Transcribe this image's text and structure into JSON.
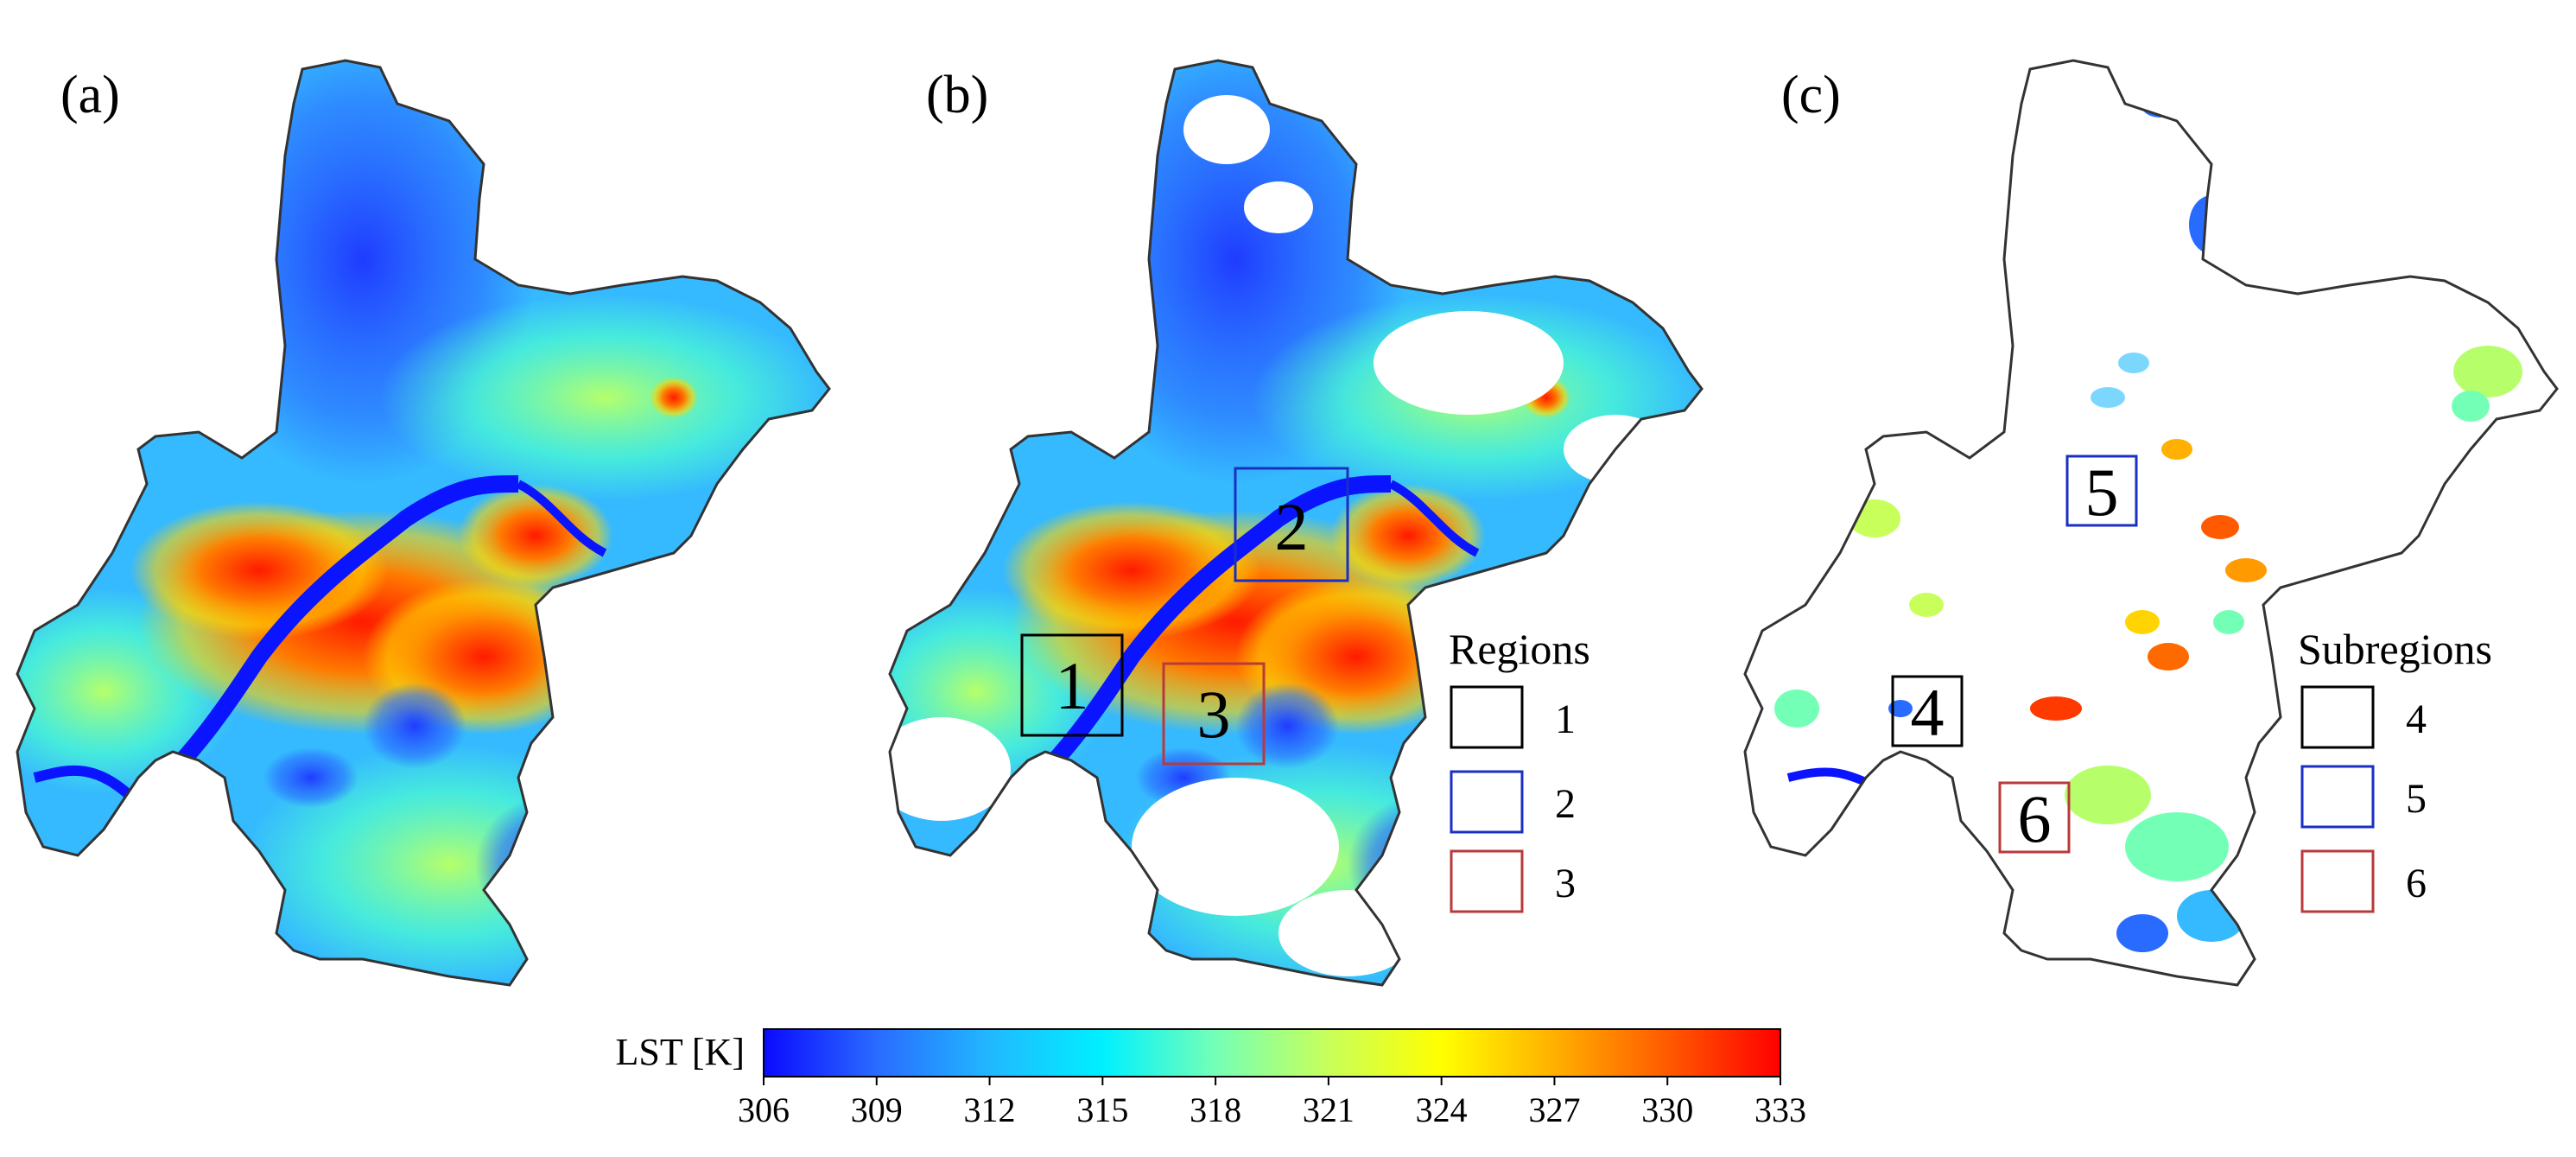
{
  "panels": [
    {
      "label": "(a)"
    },
    {
      "label": "(b)"
    },
    {
      "label": "(c)"
    }
  ],
  "legend_b": {
    "title": "Regions",
    "items": [
      {
        "label": "1",
        "color": "#000000"
      },
      {
        "label": "2",
        "color": "#1a2fc4"
      },
      {
        "label": "3",
        "color": "#b83a3a"
      }
    ]
  },
  "legend_c": {
    "title": "Subregions",
    "items": [
      {
        "label": "4",
        "color": "#000000"
      },
      {
        "label": "5",
        "color": "#1a2fc4"
      },
      {
        "label": "6",
        "color": "#b83a3a"
      }
    ]
  },
  "boxes_b": [
    {
      "label": "1",
      "color": "#000000"
    },
    {
      "label": "2",
      "color": "#1a2fc4"
    },
    {
      "label": "3",
      "color": "#b83a3a"
    }
  ],
  "boxes_c": [
    {
      "label": "4",
      "color": "#000000"
    },
    {
      "label": "5",
      "color": "#1a2fc4"
    },
    {
      "label": "6",
      "color": "#b83a3a"
    }
  ],
  "colorbar": {
    "title": "LST [K]",
    "min": 306,
    "max": 333,
    "ticks": [
      "306",
      "309",
      "312",
      "315",
      "318",
      "321",
      "324",
      "327",
      "330",
      "333"
    ],
    "colors": [
      "#0a0aff",
      "#2a6bff",
      "#21b8ff",
      "#00f0ff",
      "#74ffb6",
      "#c8ff5a",
      "#ffff00",
      "#ffb000",
      "#ff5a00",
      "#ff0000"
    ]
  }
}
